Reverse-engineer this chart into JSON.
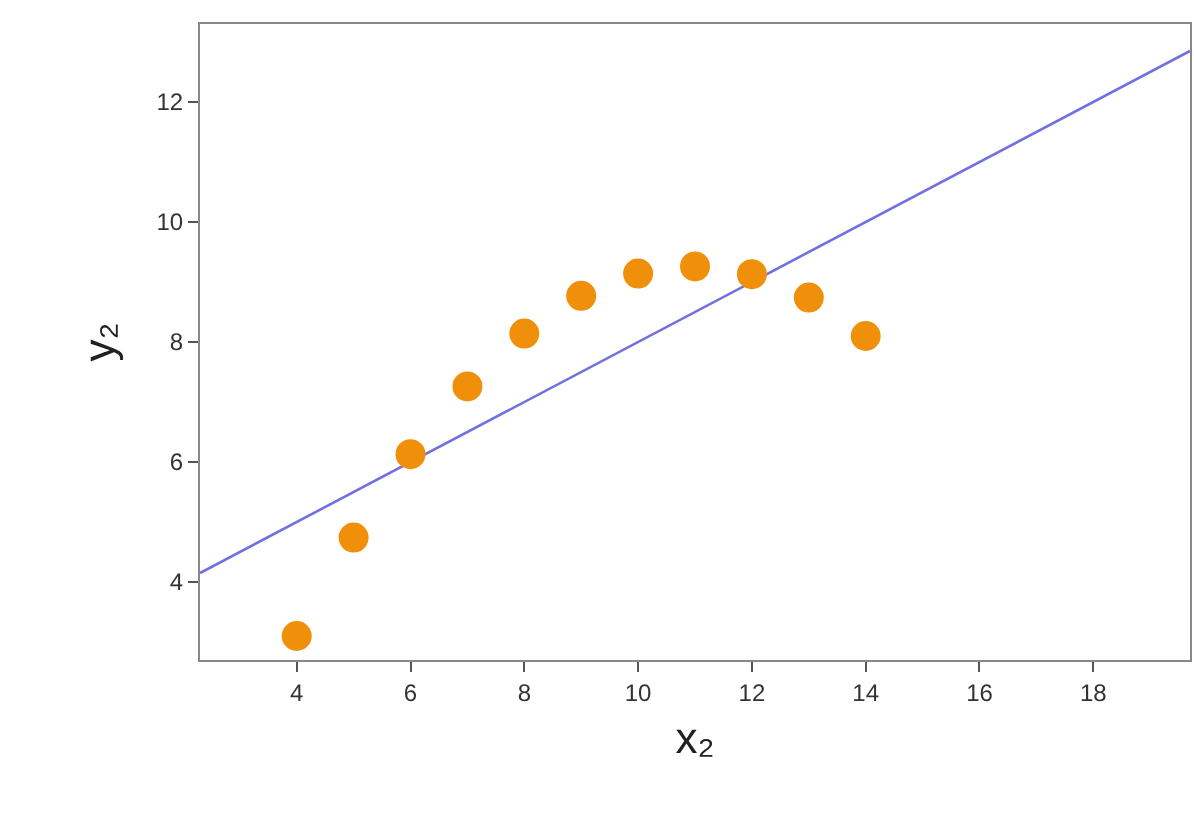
{
  "chart_data": {
    "type": "scatter",
    "xlabel": "x₂",
    "ylabel": "y₂",
    "xlim": [
      2.3,
      19.7
    ],
    "ylim": [
      2.7,
      13.3
    ],
    "xticks": [
      4,
      6,
      8,
      10,
      12,
      14,
      16,
      18
    ],
    "yticks": [
      4,
      6,
      8,
      10,
      12
    ],
    "grid": false,
    "series": [
      {
        "marker": "circle",
        "color": "#f0900a",
        "x": [
          4,
          5,
          6,
          7,
          8,
          9,
          10,
          11,
          12,
          13,
          14
        ],
        "values": [
          3.1,
          4.74,
          6.13,
          7.26,
          8.14,
          8.77,
          9.14,
          9.26,
          9.13,
          8.74,
          8.1
        ]
      },
      {
        "type": "line",
        "color": "#7070e0",
        "x": [
          2.3,
          19.7
        ],
        "values": [
          4.15,
          12.85
        ],
        "line_style": "solid"
      }
    ]
  }
}
